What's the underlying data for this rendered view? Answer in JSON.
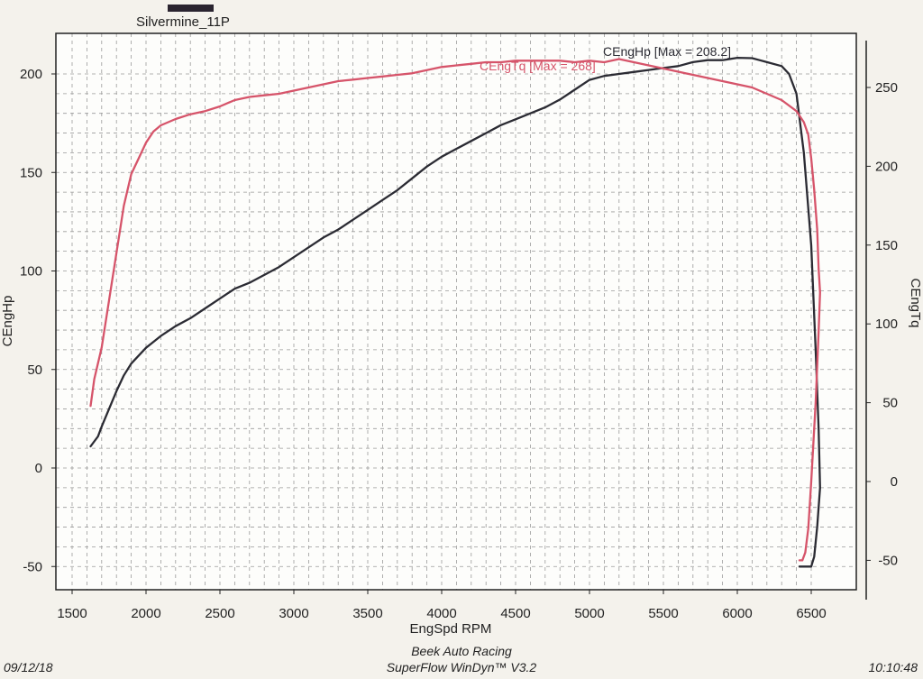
{
  "legend": {
    "run_name": "Silvermine_11P",
    "run_color": "#2a2430"
  },
  "footer": {
    "date": "09/12/18",
    "company": "Beek Auto Racing",
    "software": "SuperFlow WinDyn™ V3.2",
    "time": "10:10:48"
  },
  "colors": {
    "hp": "#2b2b33",
    "tq": "#d6546a",
    "grid": "#9a9a9a",
    "plot_bg": "#fdfdfb"
  },
  "chart_data": {
    "type": "line",
    "title": "",
    "xlabel": "EngSpd RPM",
    "ylabel_left": "CEngHp",
    "ylabel_right": "CEngTq",
    "xlim": [
      1375,
      6750
    ],
    "ylim_left": [
      -60,
      220
    ],
    "ylim_right": [
      -75,
      285
    ],
    "x_ticks": [
      1500,
      2000,
      2500,
      3000,
      3500,
      4000,
      4500,
      5000,
      5500,
      6000,
      6500
    ],
    "y_left_ticks": [
      -50,
      0,
      50,
      100,
      150,
      200
    ],
    "y_right_ticks": [
      -50,
      0,
      50,
      100,
      150,
      200,
      250
    ],
    "x_tick_labels": [
      "1500",
      "2000",
      "2500",
      "3000",
      "3500",
      "4000",
      "4500",
      "5000",
      "5500",
      "6000",
      "6500"
    ],
    "y_left_tick_labels": [
      "-50",
      "0",
      "50",
      "100",
      "150",
      "200"
    ],
    "y_right_tick_labels": [
      "-50",
      "0",
      "50",
      "100",
      "150",
      "200",
      "250"
    ],
    "grid": true,
    "series": [
      {
        "name": "CEngHp",
        "axis": "left",
        "color": "#2b2b33",
        "annotation": "CEngHp [Max = 208.2]",
        "x": [
          1625,
          1675,
          1700,
          1750,
          1800,
          1850,
          1900,
          2000,
          2100,
          2200,
          2300,
          2400,
          2500,
          2600,
          2700,
          2800,
          2900,
          3000,
          3100,
          3200,
          3300,
          3400,
          3500,
          3600,
          3700,
          3800,
          3900,
          4000,
          4100,
          4200,
          4300,
          4400,
          4500,
          4600,
          4700,
          4800,
          4900,
          5000,
          5100,
          5200,
          5300,
          5400,
          5500,
          5600,
          5700,
          5800,
          5900,
          6000,
          6100,
          6150,
          6200,
          6300,
          6350,
          6400,
          6450,
          6500,
          6530,
          6550,
          6560,
          6540,
          6520,
          6500,
          6480,
          6460,
          6440,
          6420
        ],
        "values": [
          11,
          16,
          21,
          30,
          39,
          47,
          53,
          61,
          67,
          72,
          76,
          81,
          86,
          91,
          94,
          98,
          102,
          107,
          112,
          117,
          121,
          126,
          131,
          136,
          141,
          147,
          153,
          158,
          162,
          166,
          170,
          174,
          177,
          180,
          183,
          187,
          192,
          197,
          199,
          200,
          201,
          202,
          203,
          204,
          206,
          207,
          207,
          208.2,
          208,
          207,
          206,
          204,
          200,
          190,
          160,
          113,
          60,
          20,
          -10,
          -30,
          -45,
          -50,
          -50,
          -50,
          -50,
          -50
        ]
      },
      {
        "name": "CEngTq",
        "axis": "right",
        "color": "#d6546a",
        "annotation": "CEngTq [Max = 268]",
        "x": [
          1625,
          1650,
          1700,
          1750,
          1800,
          1850,
          1900,
          1950,
          2000,
          2050,
          2100,
          2200,
          2300,
          2400,
          2500,
          2600,
          2700,
          2800,
          2900,
          3000,
          3100,
          3200,
          3300,
          3400,
          3500,
          3600,
          3700,
          3800,
          3900,
          4000,
          4100,
          4200,
          4300,
          4400,
          4500,
          4600,
          4700,
          4800,
          4900,
          5000,
          5100,
          5200,
          5300,
          5400,
          5500,
          5600,
          5700,
          5800,
          5900,
          6000,
          6100,
          6200,
          6300,
          6400,
          6450,
          6480,
          6500,
          6520,
          6540,
          6550,
          6560,
          6550,
          6530,
          6500,
          6480,
          6460,
          6440,
          6420
        ],
        "values": [
          48,
          65,
          85,
          115,
          145,
          175,
          195,
          205,
          215,
          222,
          226,
          230,
          233,
          235,
          238,
          242,
          244,
          245,
          246,
          248,
          250,
          252,
          254,
          255,
          256,
          257,
          258,
          259,
          261,
          263,
          264,
          265,
          266,
          266,
          267,
          267,
          267,
          267,
          266,
          267,
          266,
          268,
          266,
          264,
          262,
          260,
          258,
          256,
          254,
          252,
          250,
          246,
          242,
          235,
          228,
          220,
          205,
          185,
          160,
          135,
          120,
          95,
          50,
          0,
          -30,
          -45,
          -50,
          -50
        ]
      }
    ]
  }
}
